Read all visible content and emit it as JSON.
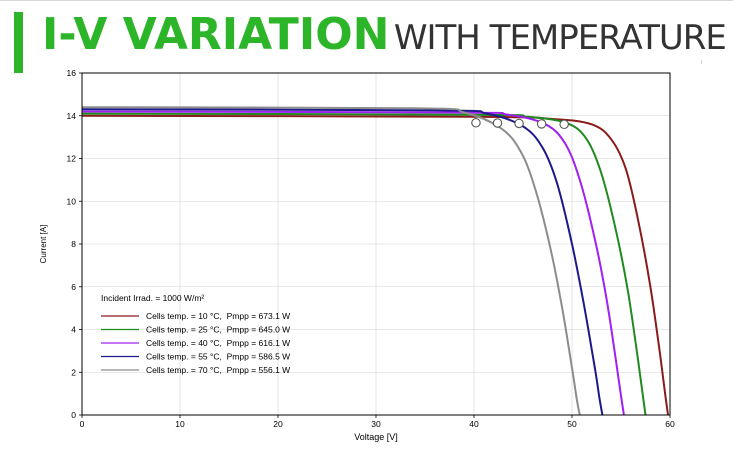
{
  "header": {
    "title_bold": "I-V VARIATION",
    "title_rest": "WITH TEMPERATURE",
    "accent_color": "#2db52a"
  },
  "chart_data": {
    "type": "line",
    "xlabel": "Voltage [V]",
    "ylabel": "Current [A]",
    "xlim": [
      0,
      60
    ],
    "ylim": [
      0,
      16
    ],
    "xticks": [
      0,
      10,
      20,
      30,
      40,
      50,
      60
    ],
    "yticks": [
      0,
      2,
      4,
      6,
      8,
      10,
      12,
      14,
      16
    ],
    "grid": true,
    "legend_position": "lower-left",
    "legend_header": "Incident Irrad. = 1000 W/m²",
    "series": [
      {
        "name": "Cells temp. = 10 °C,  Pmpp = 673.1 W",
        "color": "#8b1a1a",
        "x": [
          0,
          40,
          48,
          52,
          54,
          55.5,
          56.8,
          58,
          59,
          59.5,
          59.8
        ],
        "y": [
          14.0,
          13.95,
          13.85,
          13.6,
          12.9,
          11.5,
          9.0,
          6.0,
          2.8,
          1.0,
          0
        ],
        "mpp": [
          49.2,
          13.6
        ]
      },
      {
        "name": "Cells temp. = 25 °C,  Pmpp = 645.0 W",
        "color": "#1f8a1f",
        "x": [
          0,
          40,
          45.5,
          49.5,
          51.5,
          53,
          54.5,
          55.7,
          56.7,
          57.2,
          57.5
        ],
        "y": [
          14.1,
          14.05,
          13.95,
          13.65,
          12.9,
          11.3,
          8.6,
          5.8,
          2.7,
          1.0,
          0
        ],
        "mpp": [
          46.9,
          13.62
        ]
      },
      {
        "name": "Cells temp. = 40 °C,  Pmpp = 616.1 W",
        "color": "#a020f0",
        "x": [
          0,
          38,
          43.5,
          47.3,
          49.3,
          50.8,
          52.3,
          53.5,
          54.5,
          55.0,
          55.3
        ],
        "y": [
          14.2,
          14.15,
          14.05,
          13.6,
          12.7,
          11.0,
          8.3,
          5.5,
          2.5,
          0.9,
          0
        ],
        "mpp": [
          44.6,
          13.64
        ]
      },
      {
        "name": "Cells temp. = 55 °C,  Pmpp = 586.5 W",
        "color": "#1a1a8b",
        "x": [
          0,
          36,
          41.3,
          45,
          47,
          48.5,
          50,
          51.2,
          52.3,
          52.8,
          53.1
        ],
        "y": [
          14.3,
          14.25,
          14.1,
          13.5,
          12.5,
          10.8,
          8.0,
          5.2,
          2.3,
          0.8,
          0
        ],
        "mpp": [
          42.4,
          13.66
        ]
      },
      {
        "name": "Cells temp. = 70 °C,  Pmpp = 556.1 W",
        "color": "#8c8c8c",
        "x": [
          0,
          34,
          39,
          42.8,
          44.8,
          46.3,
          47.8,
          49,
          50,
          50.5,
          50.8
        ],
        "y": [
          14.4,
          14.35,
          14.15,
          13.4,
          12.3,
          10.5,
          7.8,
          5.0,
          2.2,
          0.7,
          0
        ],
        "mpp": [
          40.2,
          13.67
        ]
      }
    ]
  }
}
